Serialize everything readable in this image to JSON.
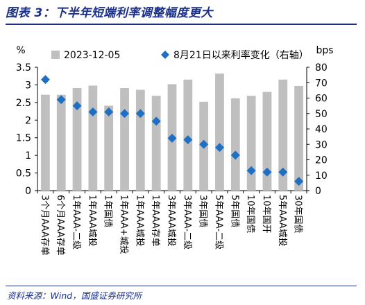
{
  "figure": {
    "title": "图表 3：下半年短端利率调整幅度更大",
    "source": "资料来源：Wind，国盛证券研究所"
  },
  "colors": {
    "bar": "#bfbfbf",
    "marker": "#1f6fc5",
    "title": "#1a2f8a"
  },
  "chart_data": {
    "type": "bar",
    "categories": [
      "3个月AAA存单",
      "6个月AAA存单",
      "1年AAA-二级",
      "1年AAA城投",
      "1年国债",
      "1年AAA+城投",
      "1年AAA城投",
      "1年AAA存单",
      "3年AAA城投",
      "3年AAA-二级",
      "3年国债",
      "5年AAA-二级",
      "5年国债",
      "10年国债",
      "10年国开",
      "5年AAA城投",
      "30年国债"
    ],
    "series": [
      {
        "name": "2023-12-05",
        "type": "bar",
        "axis": "left",
        "values": [
          2.72,
          2.72,
          2.91,
          2.98,
          2.41,
          2.91,
          2.86,
          2.69,
          3.02,
          3.15,
          2.52,
          3.32,
          2.62,
          2.69,
          2.8,
          3.15,
          2.97
        ]
      },
      {
        "name": "8月21日以来利率变化（右轴）",
        "type": "scatter",
        "axis": "right",
        "values": [
          72,
          59,
          55,
          51,
          51,
          50,
          50,
          45,
          34,
          33,
          30,
          28,
          23,
          13,
          12,
          12,
          6
        ]
      }
    ],
    "y_left": {
      "unit_label": "%",
      "ylim": [
        0,
        3.5
      ],
      "ticks": [
        "0",
        "0.5",
        "1",
        "1.5",
        "2",
        "2.5",
        "3",
        "3.5"
      ]
    },
    "y_right": {
      "unit_label": "bps",
      "ylim": [
        0,
        80
      ],
      "ticks": [
        "0",
        "10",
        "20",
        "30",
        "40",
        "50",
        "60",
        "70",
        "80"
      ]
    },
    "legend_position": "top",
    "grid": false
  }
}
